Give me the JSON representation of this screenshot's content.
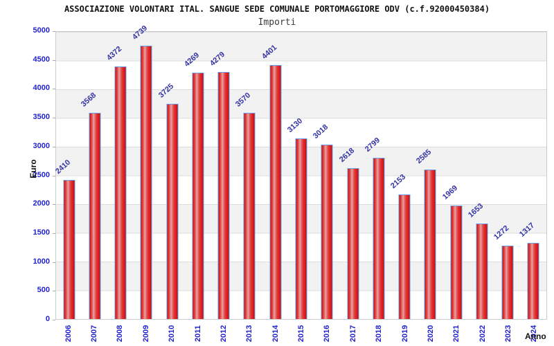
{
  "header": {
    "title": "ASSOCIAZIONE VOLONTARI ITAL. SANGUE SEDE COMUNALE PORTOMAGGIORE ODV (c.f.92000450384)",
    "subtitle": "Importi"
  },
  "chart_data": {
    "type": "bar",
    "title": "ASSOCIAZIONE VOLONTARI ITAL. SANGUE SEDE COMUNALE PORTOMAGGIORE ODV (c.f.92000450384)",
    "subtitle": "Importi",
    "xlabel": "Anno",
    "ylabel": "Euro",
    "categories": [
      "2006",
      "2007",
      "2008",
      "2009",
      "2010",
      "2011",
      "2012",
      "2013",
      "2014",
      "2015",
      "2016",
      "2017",
      "2018",
      "2019",
      "2020",
      "2021",
      "2022",
      "2023",
      "2024"
    ],
    "values": [
      2410,
      3568,
      4372,
      4739,
      3725,
      4269,
      4279,
      3570,
      4401,
      3130,
      3018,
      2618,
      2799,
      2153,
      2585,
      1969,
      1653,
      1272,
      1317
    ],
    "ylim": [
      0,
      5000
    ],
    "ytick_step": 500,
    "y_ticks": [
      5000,
      4500,
      4000,
      3500,
      3000,
      2500,
      2000,
      1500,
      1000,
      500,
      0
    ],
    "grid": "horizontal alternating bands",
    "legend": "none",
    "colors": {
      "bar_fill": "#e62525",
      "bar_highlight": "#eba4a4",
      "bar_border": "#66a0e8",
      "tick_label": "#2222cc",
      "value_label": "#3434a4",
      "band_shade": "#f2f2f2",
      "gridline": "#dcdcdc",
      "axis_title": "#111111"
    }
  }
}
